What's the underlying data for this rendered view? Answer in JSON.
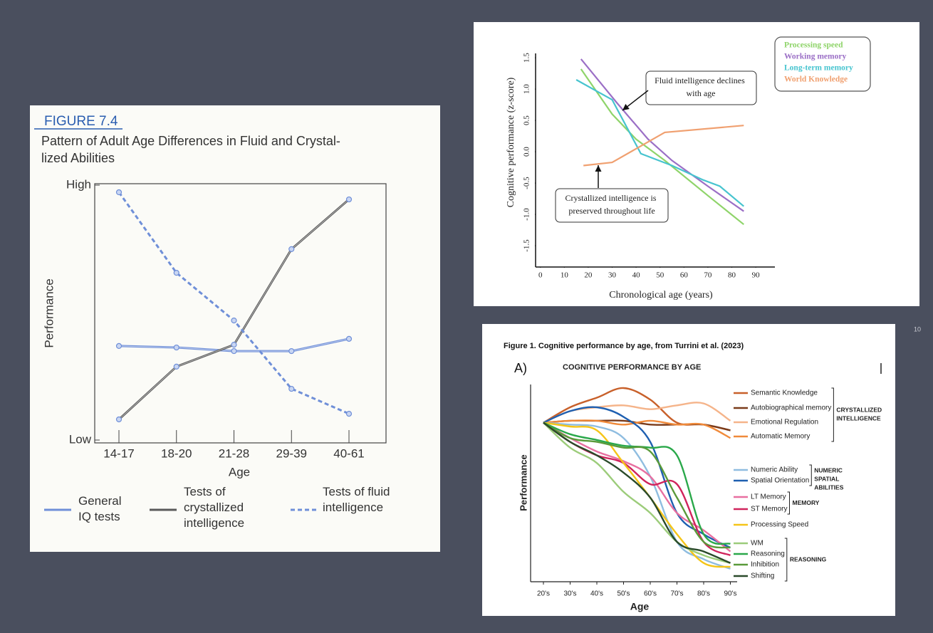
{
  "slide": {
    "page_number": "10"
  },
  "chart_data": [
    {
      "type": "line",
      "figure_label": "FIGURE 7.4",
      "title": [
        "Pattern of Adult Age Differences in Fluid and Crystal-",
        "lized Abilities"
      ],
      "x_label": "Age",
      "y_label": "Performance",
      "categories": [
        "14-17",
        "18-20",
        "21-28",
        "29-39",
        "40-61"
      ],
      "ylim": [
        0,
        100
      ],
      "yticks": [
        {
          "value": 0,
          "label": "Low"
        },
        {
          "value": 100,
          "label": "High"
        }
      ],
      "series": [
        {
          "name": "General IQ tests",
          "color": "#6f8fd8",
          "dashed": false,
          "values": [
            36.9,
            36.3,
            34.9,
            34.9,
            39.7
          ]
        },
        {
          "name": "Tests of crystallized intelligence",
          "color": "#5a5a5a",
          "dashed": false,
          "values": [
            8.1,
            28.8,
            37.4,
            74.9,
            94.4
          ]
        },
        {
          "name": "Tests of fluid intelligence",
          "color": "#6f8fd8",
          "dashed": true,
          "values": [
            97.2,
            65.6,
            46.9,
            20.1,
            10.3
          ]
        }
      ]
    },
    {
      "type": "line",
      "x_label": "Chronological age (years)",
      "y_label": "Cognitive performance (z-score)",
      "xlim": [
        -2,
        98
      ],
      "xticks": [
        0,
        10,
        20,
        30,
        40,
        50,
        60,
        70,
        80,
        90
      ],
      "ylim": [
        -1.84,
        1.57
      ],
      "yticks": [
        -1.5,
        {
          "value": -1,
          "label": "-1.0"
        },
        -0.5,
        {
          "value": 0,
          "label": "0.0"
        },
        0.5,
        {
          "value": 1,
          "label": "1.0"
        },
        1.5
      ],
      "annotations": [
        "Fluid intelligence declines with age",
        "Crystallized intelligence is preserved throughout life"
      ],
      "series": [
        {
          "name": "Processing speed",
          "color": "#8fd46a",
          "x": [
            17,
            30,
            40,
            52,
            70,
            85
          ],
          "values": [
            1.32,
            0.6,
            0.2,
            -0.14,
            -0.7,
            -1.16
          ]
        },
        {
          "name": "Working memory",
          "color": "#9b6fc6",
          "x": [
            17,
            32,
            45,
            55,
            70,
            85
          ],
          "values": [
            1.48,
            0.78,
            0.2,
            -0.14,
            -0.55,
            -0.95
          ]
        },
        {
          "name": "Long-term memory",
          "color": "#47c4cf",
          "x": [
            15,
            30,
            42,
            55,
            68,
            75,
            85
          ],
          "values": [
            1.15,
            0.83,
            -0.03,
            -0.22,
            -0.45,
            -0.55,
            -0.87
          ]
        },
        {
          "name": "World Knowledge",
          "color": "#f0a070",
          "x": [
            18,
            30,
            52,
            85
          ],
          "values": [
            -0.22,
            -0.17,
            0.31,
            0.42
          ]
        }
      ]
    },
    {
      "type": "line",
      "caption": "Figure 1. Cognitive performance by age, from Turrini et al. (2023)",
      "panel_label": "A)",
      "title": "COGNITIVE PERFORMANCE BY AGE",
      "x_label": "Age",
      "y_label": "Performance",
      "categories": [
        "20's",
        "30's",
        "40's",
        "50's",
        "60's",
        "70's",
        "80's",
        "90's"
      ],
      "ylim": [
        0,
        100
      ],
      "groups": [
        {
          "label": "CRYSTALLIZED INTELLIGENCE",
          "series": [
            {
              "name": "Semantic Knowledge",
              "color": "#c8602a",
              "values": [
                82,
                90,
                95,
                100,
                94,
                82,
                81,
                78
              ]
            },
            {
              "name": "Autobiographical memory",
              "color": "#7a3b1a",
              "values": [
                82,
                83,
                83,
                83,
                81,
                81,
                81,
                78
              ]
            },
            {
              "name": "Emotional Regulation",
              "color": "#f5b48a",
              "values": [
                82,
                88,
                90,
                91,
                89,
                91,
                92,
                83
              ]
            },
            {
              "name": "Automatic Memory",
              "color": "#f08a3a",
              "values": [
                82,
                83,
                83,
                81,
                83,
                81,
                81,
                74
              ]
            }
          ]
        },
        {
          "label": "NUMERIC SPATIAL ABILITIES",
          "series": [
            {
              "name": "Numeric Ability",
              "color": "#8fbde0",
              "values": [
                82,
                81,
                80,
                74,
                54,
                20,
                11,
                6
              ]
            },
            {
              "name": "Spatial Orientation",
              "color": "#1e5fb0",
              "values": [
                82,
                88,
                90,
                85,
                72,
                35,
                24,
                17
              ]
            }
          ]
        },
        {
          "label": "MEMORY",
          "series": [
            {
              "name": "LT Memory",
              "color": "#e86fa0",
              "values": [
                82,
                74,
                67,
                62,
                54,
                35,
                26,
                15
              ]
            },
            {
              "name": "ST Memory",
              "color": "#d0245c",
              "values": [
                82,
                72,
                65,
                61,
                50,
                50,
                20,
                13
              ]
            }
          ]
        },
        {
          "series": [
            {
              "name": "Processing Speed",
              "color": "#f5c518",
              "values": [
                82,
                80,
                78,
                61,
                43,
                24,
                9,
                7
              ]
            }
          ]
        },
        {
          "label": "REASONING",
          "series": [
            {
              "name": "WM",
              "color": "#9ccc7a",
              "values": [
                82,
                69,
                61,
                46,
                35,
                20,
                13,
                9
              ]
            },
            {
              "name": "Reasoning",
              "color": "#2aa84a",
              "values": [
                82,
                76,
                73,
                70,
                69,
                65,
                24,
                19
              ]
            },
            {
              "name": "Inhibition",
              "color": "#5a9a3a",
              "values": [
                82,
                74,
                72,
                69,
                67,
                43,
                20,
                17
              ]
            },
            {
              "name": "Shifting",
              "color": "#2a4a2a",
              "values": [
                82,
                72,
                65,
                56,
                43,
                20,
                15,
                9
              ]
            }
          ]
        }
      ]
    }
  ]
}
